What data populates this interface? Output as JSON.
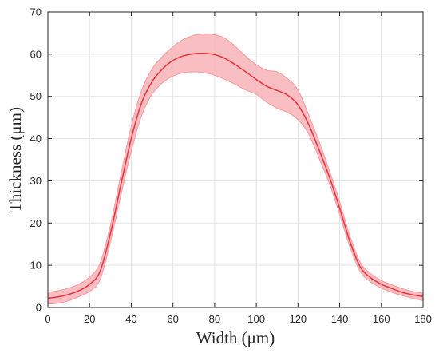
{
  "chart_data": {
    "type": "line",
    "title": "",
    "xlabel": "Width (μm)",
    "ylabel": "Thickness (μm)",
    "xlim": [
      0,
      180
    ],
    "ylim": [
      0,
      70
    ],
    "x_ticks": [
      0,
      20,
      40,
      60,
      80,
      100,
      120,
      140,
      160,
      180
    ],
    "y_ticks": [
      0,
      10,
      20,
      30,
      40,
      50,
      60,
      70
    ],
    "grid": true,
    "colors": {
      "line": "#e8303a",
      "band": "#f7b3b6",
      "band_edge": "#f59aa0"
    },
    "series": [
      {
        "x": [
          0,
          5,
          10,
          15,
          20,
          25,
          30,
          35,
          40,
          45,
          50,
          55,
          60,
          65,
          70,
          75,
          80,
          85,
          90,
          95,
          100,
          105,
          110,
          115,
          120,
          125,
          130,
          135,
          140,
          145,
          150,
          155,
          160,
          165,
          170,
          175,
          180
        ],
        "mean": [
          2.2,
          2.5,
          3.1,
          4.0,
          5.5,
          8.5,
          17.5,
          29.0,
          40.0,
          48.5,
          53.5,
          56.5,
          58.5,
          59.6,
          60.1,
          60.2,
          59.9,
          59.0,
          57.5,
          55.8,
          54.0,
          52.4,
          51.4,
          50.3,
          48.0,
          43.5,
          37.5,
          31.0,
          23.5,
          15.5,
          9.5,
          7.0,
          5.5,
          4.5,
          3.6,
          3.0,
          2.6
        ],
        "upper": [
          3.6,
          4.0,
          4.6,
          5.6,
          7.2,
          10.5,
          19.5,
          31.5,
          43.0,
          51.5,
          56.5,
          59.5,
          61.8,
          63.5,
          64.5,
          64.8,
          64.6,
          63.8,
          61.8,
          59.5,
          57.5,
          56.2,
          55.8,
          54.2,
          51.5,
          45.8,
          39.5,
          32.6,
          25.0,
          16.8,
          10.6,
          8.0,
          6.4,
          5.4,
          4.5,
          3.8,
          3.4
        ],
        "lower": [
          0.8,
          1.0,
          1.6,
          2.6,
          3.8,
          6.5,
          15.5,
          26.5,
          37.0,
          45.5,
          50.5,
          53.2,
          54.8,
          55.6,
          55.8,
          55.6,
          55.0,
          54.0,
          52.8,
          51.5,
          50.5,
          48.6,
          47.2,
          46.2,
          44.5,
          41.2,
          35.5,
          29.4,
          22.0,
          14.2,
          8.4,
          6.0,
          4.6,
          3.6,
          2.8,
          2.2,
          1.6
        ]
      }
    ]
  }
}
